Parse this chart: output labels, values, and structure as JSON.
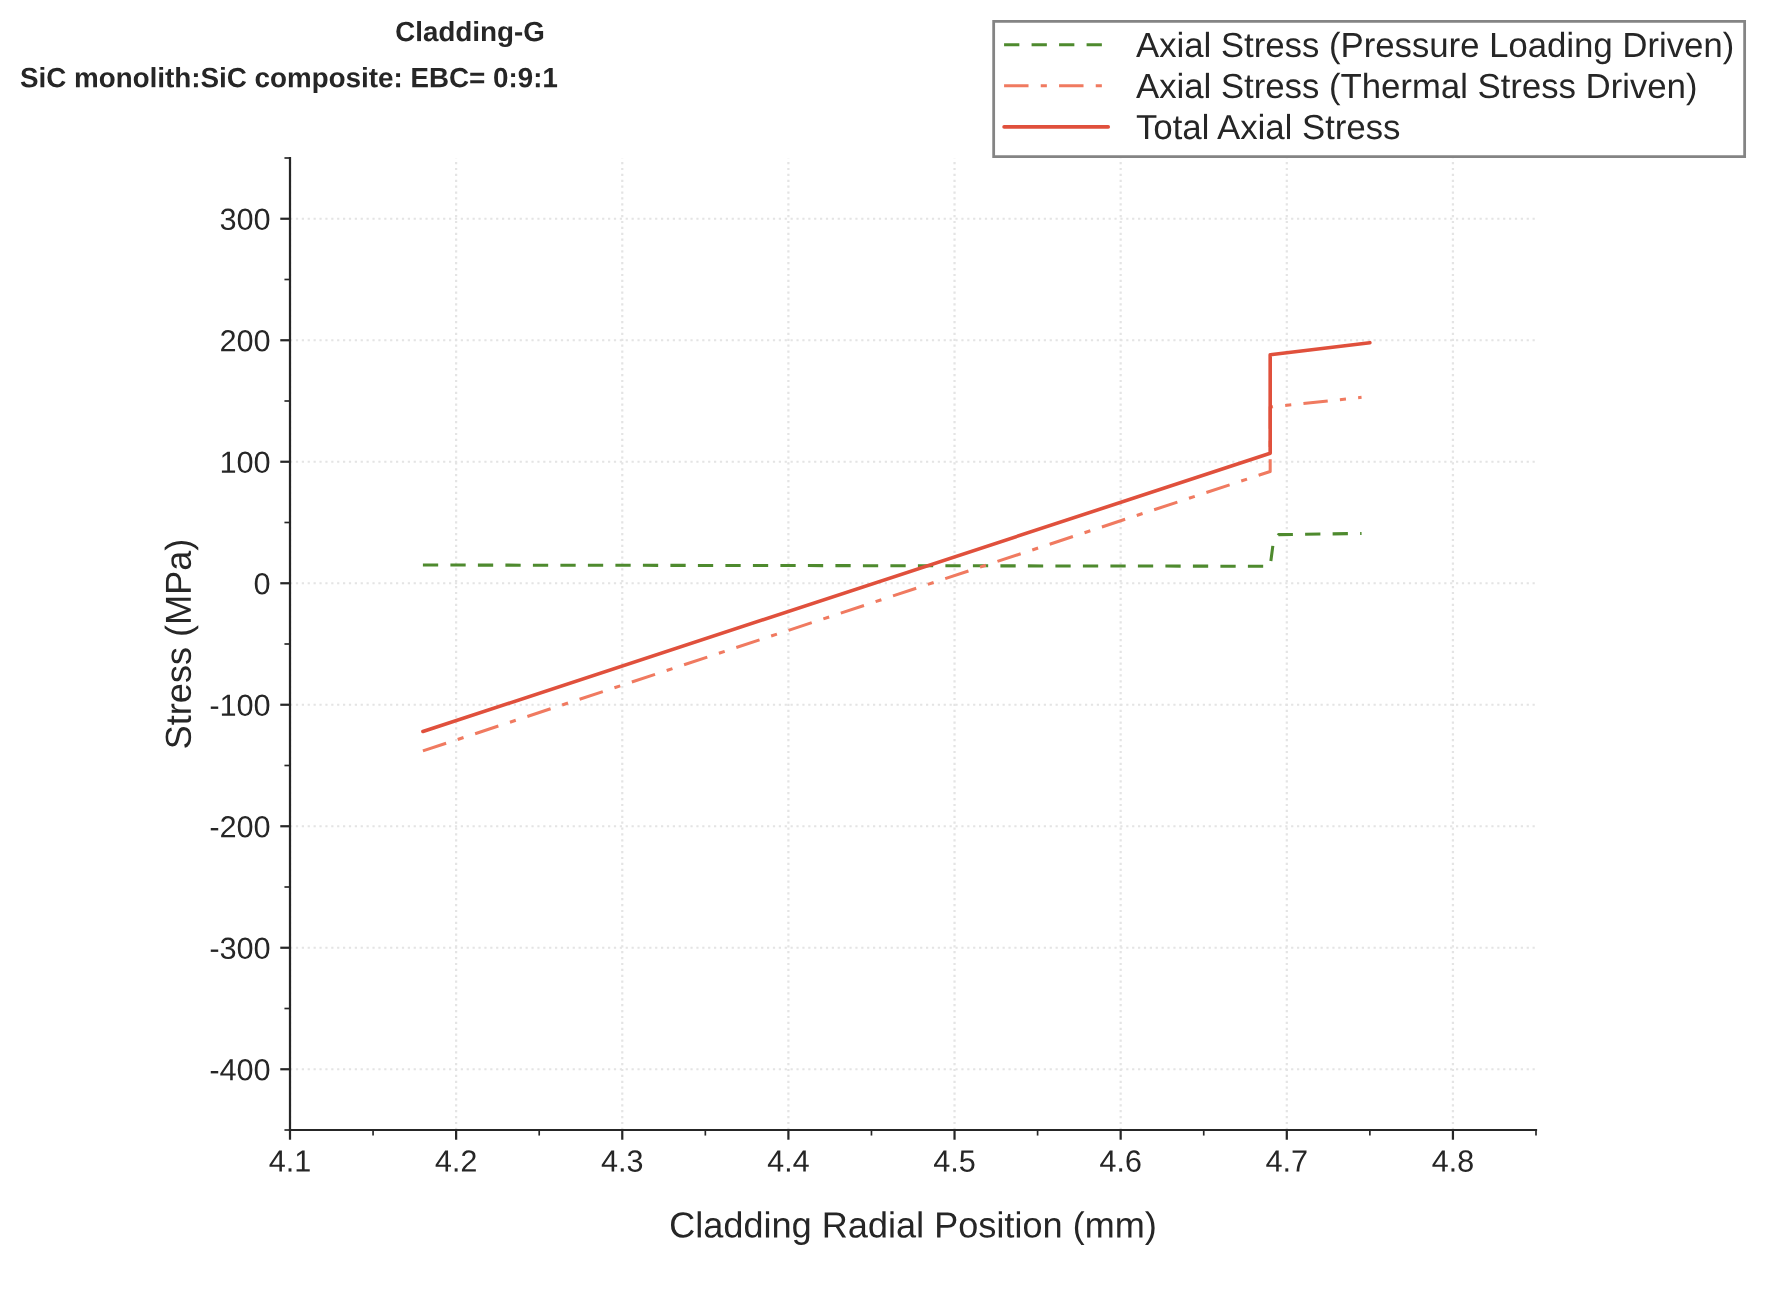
{
  "chart_data": {
    "type": "line",
    "title": "Cladding-G",
    "subtitle": "SiC monolith:SiC composite: EBC= 0:9:1",
    "xlabel": "Cladding Radial Position (mm)",
    "ylabel": "Stress (MPa)",
    "xlim": [
      4.1,
      4.85
    ],
    "xticks": [
      4.1,
      4.2,
      4.3,
      4.4,
      4.5,
      4.6,
      4.7,
      4.8
    ],
    "ylim": [
      -450,
      350
    ],
    "yticks": [
      -400,
      -300,
      -200,
      -100,
      0,
      100,
      200,
      300
    ],
    "grid": true,
    "legend": "top right",
    "series": [
      {
        "name": "Axial Stress (Pressure Loading Driven)",
        "color": "#4e8a2e",
        "line_style": "dashed",
        "x": [
          4.18,
          4.69,
          4.692,
          4.695,
          4.745
        ],
        "values": [
          15,
          14,
          35,
          40,
          41
        ]
      },
      {
        "name": "Axial Stress (Thermal Stress Driven)",
        "color": "#f07a60",
        "line_style": "dashdot",
        "x": [
          4.18,
          4.69,
          4.69,
          4.745
        ],
        "values": [
          -138,
          92,
          145,
          153
        ]
      },
      {
        "name": "Total Axial Stress",
        "color": "#e0503c",
        "line_style": "solid",
        "x": [
          4.18,
          4.69,
          4.69,
          4.75
        ],
        "values": [
          -122,
          107,
          188,
          198
        ]
      }
    ]
  }
}
